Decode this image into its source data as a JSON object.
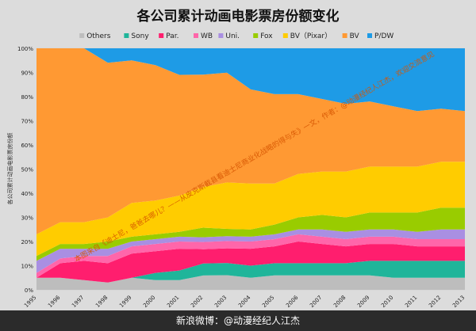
{
  "chart_data": {
    "type": "area",
    "stacked": "percent",
    "title": "各公司累计动画电影票房份额变化",
    "ylabel": "各公司累计动画电影票房份额",
    "ylim": [
      0,
      100
    ],
    "y_ticks": [
      "0%",
      "10%",
      "20%",
      "30%",
      "40%",
      "50%",
      "60%",
      "70%",
      "80%",
      "90%",
      "100%"
    ],
    "x": [
      "1995",
      "1996",
      "1997",
      "1998",
      "1999",
      "2000",
      "2001",
      "2002",
      "2003",
      "2004",
      "2005",
      "2006",
      "2007",
      "2008",
      "2009",
      "2010",
      "2011",
      "2012",
      "2013"
    ],
    "grid": true,
    "legend_position": "top",
    "series": [
      {
        "name": "Others",
        "color": "#bdbdbd",
        "values": [
          5,
          5,
          4,
          3,
          5,
          4,
          4,
          6,
          6,
          5,
          6,
          6,
          6,
          6,
          6,
          5,
          5,
          5,
          5
        ]
      },
      {
        "name": "Sony",
        "color": "#1fb59a",
        "values": [
          0,
          0,
          0,
          0,
          0,
          3,
          4,
          5,
          5,
          5,
          5,
          5,
          5,
          5,
          6,
          7,
          7,
          7,
          7
        ]
      },
      {
        "name": "Par.",
        "color": "#ff1e6e",
        "values": [
          0,
          6,
          8,
          8,
          10,
          9,
          9,
          6,
          6,
          7,
          7,
          9,
          8,
          7,
          7,
          7,
          6,
          6,
          6
        ]
      },
      {
        "name": "WB",
        "color": "#ff66aa",
        "values": [
          2,
          2,
          2,
          3,
          3,
          3,
          3,
          3,
          3,
          3,
          3,
          3,
          3,
          3,
          3,
          3,
          3,
          3,
          3
        ]
      },
      {
        "name": "Uni.",
        "color": "#a98fe2",
        "values": [
          5,
          4,
          3,
          3,
          2,
          2,
          2,
          2,
          2,
          2,
          2,
          2,
          3,
          3,
          3,
          3,
          3,
          4,
          4
        ]
      },
      {
        "name": "Fox",
        "color": "#99cc00",
        "values": [
          2,
          2,
          2,
          3,
          2,
          2,
          2,
          4,
          3,
          3,
          4,
          5,
          6,
          6,
          7,
          7,
          8,
          9,
          9
        ]
      },
      {
        "name": "BV（Pixar）",
        "color": "#ffcc00",
        "values": [
          9,
          9,
          9,
          10,
          14,
          14,
          15,
          17,
          19,
          19,
          17,
          18,
          18,
          19,
          19,
          19,
          19,
          19,
          19
        ]
      },
      {
        "name": "BV",
        "color": "#ff9933",
        "values": [
          77,
          72,
          72,
          64,
          59,
          56,
          50,
          47,
          45,
          39,
          37,
          33,
          30,
          28,
          27,
          25,
          23,
          22,
          21
        ]
      },
      {
        "name": "P/DW",
        "color": "#1e9be6",
        "values": [
          0,
          0,
          0,
          6,
          5,
          7,
          11,
          11,
          10,
          17,
          19,
          19,
          21,
          23,
          22,
          24,
          26,
          25,
          26
        ]
      }
    ],
    "annotation": "本图来自《迪士尼，爸爸去哪儿？——从皮克斯截县看迪士尼商业化战略的得与失》一文，作者：@动漫经纪人江杰，欢迎交流意见"
  },
  "footer": {
    "text": "新浪微博：@动漫经纪人江杰"
  }
}
